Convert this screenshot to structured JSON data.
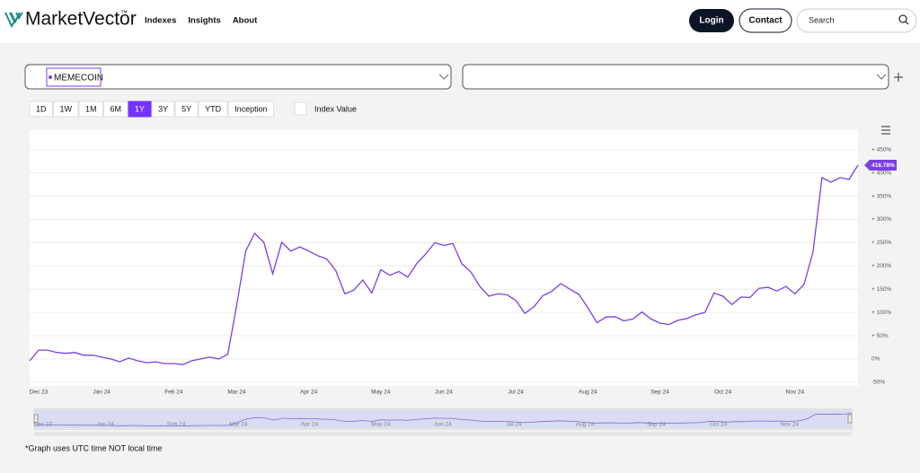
{
  "header": {
    "logo": "MarketVector",
    "trademark": "™",
    "nav": [
      "Indexes",
      "Insights",
      "About"
    ],
    "login": "Login",
    "contact": "Contact",
    "search_placeholder": "Search"
  },
  "selector": {
    "index": "MEMECOIN"
  },
  "ranges": {
    "options": [
      "1D",
      "1W",
      "1M",
      "6M",
      "1Y",
      "3Y",
      "5Y",
      "YTD",
      "Inception"
    ],
    "active": "1Y"
  },
  "index_value_label": "Index Value",
  "chart_data": {
    "type": "line",
    "color": "#7b3fe4",
    "grid": true,
    "categories": [
      null,
      "Dec 23",
      null,
      null,
      null,
      null,
      null,
      null,
      "Jan 24",
      null,
      null,
      null,
      null,
      null,
      null,
      null,
      "Feb 24",
      null,
      null,
      null,
      null,
      null,
      null,
      "Mar 24",
      null,
      null,
      null,
      null,
      null,
      null,
      null,
      "Apr 24",
      null,
      null,
      null,
      null,
      null,
      null,
      null,
      "May 24",
      null,
      null,
      null,
      null,
      null,
      null,
      "Jun 24",
      null,
      null,
      null,
      null,
      null,
      null,
      null,
      "Jul 24",
      null,
      null,
      null,
      null,
      null,
      null,
      null,
      "Aug 24",
      null,
      null,
      null,
      null,
      null,
      null,
      null,
      "Sep 24",
      null,
      null,
      null,
      null,
      null,
      null,
      "Oct 24",
      null,
      null,
      null,
      null,
      null,
      null,
      null,
      "Nov 24",
      null,
      null,
      null,
      null,
      null,
      null,
      null
    ],
    "values": [
      -4,
      19,
      19,
      14,
      12,
      14,
      8,
      8,
      4,
      0,
      -6,
      2,
      -4,
      -8,
      -6,
      -10,
      -10,
      -12,
      -4,
      0,
      4,
      0,
      10,
      116,
      232,
      270,
      251,
      183,
      251,
      232,
      241,
      232,
      222,
      215,
      190,
      140,
      148,
      170,
      142,
      192,
      180,
      188,
      176,
      205,
      226,
      250,
      244,
      248,
      205,
      187,
      156,
      135,
      140,
      138,
      126,
      98,
      112,
      136,
      146,
      162,
      150,
      139,
      110,
      78,
      90,
      91,
      82,
      86,
      101,
      86,
      77,
      74,
      83,
      87,
      95,
      100,
      142,
      135,
      117,
      133,
      132,
      152,
      154,
      146,
      156,
      140,
      160,
      230,
      390,
      380,
      390,
      386,
      416.78
    ],
    "current_label": {
      "value": 416.78,
      "label": "416.78%"
    },
    "ylim": [
      -58,
      492
    ],
    "yticks": [
      {
        "value": -50,
        "label": "-50%"
      },
      {
        "value": 0,
        "label": "0%"
      },
      {
        "value": 50,
        "label": "+ 50%"
      },
      {
        "value": 100,
        "label": "+ 100%"
      },
      {
        "value": 150,
        "label": "+ 150%"
      },
      {
        "value": 200,
        "label": "+ 200%"
      },
      {
        "value": 250,
        "label": "+ 250%"
      },
      {
        "value": 300,
        "label": "+ 300%"
      },
      {
        "value": 350,
        "label": "+ 350%"
      },
      {
        "value": 400,
        "label": "+ 400%"
      },
      {
        "value": 450,
        "label": "+ 450%"
      }
    ]
  },
  "footnote": "*Graph uses UTC time NOT local time"
}
